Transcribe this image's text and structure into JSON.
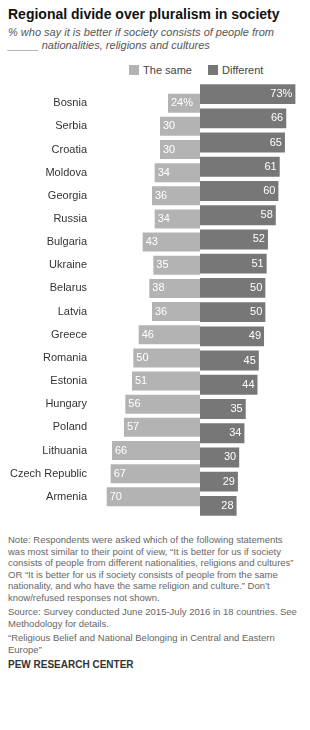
{
  "chart_data": {
    "type": "bar",
    "orientation": "horizontal",
    "title": "Regional divide over pluralism in society",
    "subtitle": "% who say it is better if society consists of people from _____ nationalities, religions and cultures",
    "categories": [
      "Bosnia",
      "Serbia",
      "Croatia",
      "Moldova",
      "Georgia",
      "Russia",
      "Bulgaria",
      "Ukraine",
      "Belarus",
      "Latvia",
      "Greece",
      "Romania",
      "Estonia",
      "Hungary",
      "Poland",
      "Lithuania",
      "Czech Republic",
      "Armenia"
    ],
    "series": [
      {
        "name": "The same",
        "color": "#b3b3b3",
        "values": [
          24,
          30,
          30,
          34,
          36,
          34,
          43,
          35,
          38,
          36,
          46,
          50,
          51,
          56,
          57,
          66,
          67,
          70
        ],
        "value_labels": [
          "24%",
          "30",
          "30",
          "34",
          "36",
          "34",
          "43",
          "35",
          "38",
          "36",
          "46",
          "50",
          "51",
          "56",
          "57",
          "66",
          "67",
          "70"
        ]
      },
      {
        "name": "Different",
        "color": "#777777",
        "values": [
          73,
          66,
          65,
          61,
          60,
          58,
          52,
          51,
          50,
          50,
          49,
          45,
          44,
          35,
          34,
          30,
          29,
          28
        ],
        "value_labels": [
          "73%",
          "66",
          "65",
          "61",
          "60",
          "58",
          "52",
          "51",
          "50",
          "50",
          "49",
          "45",
          "44",
          "35",
          "34",
          "30",
          "29",
          "28"
        ]
      }
    ],
    "xlim": [
      0,
      75
    ],
    "grid": false,
    "legend": "top",
    "data_labels": true,
    "tick_labels": "y",
    "notes": [
      "Note: Respondents were asked which of the following statements was most similar to their point of view, “It is better for us if society consists of people from different nationalities, religions and cultures” OR “It is better for us if society consists of people from the same nationality, and who have the same religion and culture.” Don’t know/refused responses not shown.",
      "Source: Survey conducted June 2015-July 2016 in 18 countries. See Methodology for details.",
      "“Religious Belief and National Belonging in Central and Eastern Europe”"
    ],
    "credit": "PEW RESEARCH CENTER"
  }
}
